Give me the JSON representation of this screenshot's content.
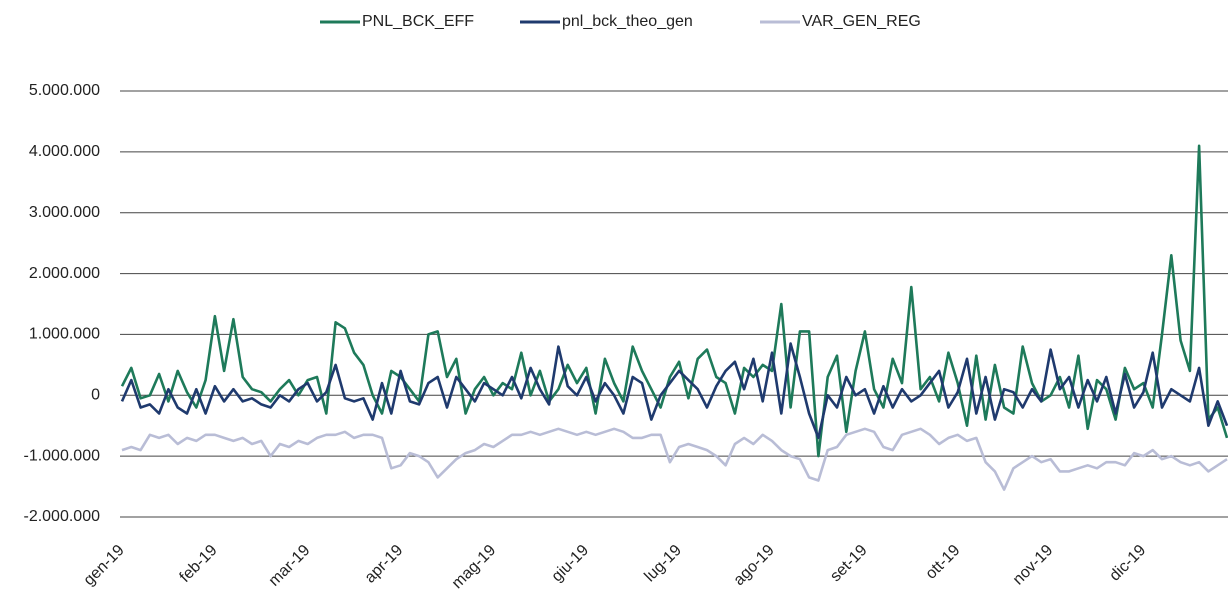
{
  "chart_data": {
    "type": "line",
    "categories": [
      "gen-19",
      null,
      null,
      null,
      null,
      null,
      null,
      null,
      null,
      null,
      "feb-19",
      null,
      null,
      null,
      null,
      null,
      null,
      null,
      null,
      null,
      "mar-19",
      null,
      null,
      null,
      null,
      null,
      null,
      null,
      null,
      null,
      "apr-19",
      null,
      null,
      null,
      null,
      null,
      null,
      null,
      null,
      null,
      "mag-19",
      null,
      null,
      null,
      null,
      null,
      null,
      null,
      null,
      null,
      "giu-19",
      null,
      null,
      null,
      null,
      null,
      null,
      null,
      null,
      null,
      "lug-19",
      null,
      null,
      null,
      null,
      null,
      null,
      null,
      null,
      null,
      "ago-19",
      null,
      null,
      null,
      null,
      null,
      null,
      null,
      null,
      null,
      "set-19",
      null,
      null,
      null,
      null,
      null,
      null,
      null,
      null,
      null,
      "ott-19",
      null,
      null,
      null,
      null,
      null,
      null,
      null,
      null,
      null,
      "nov-19",
      null,
      null,
      null,
      null,
      null,
      null,
      null,
      null,
      null,
      "dic-19",
      null,
      null,
      null,
      null,
      null,
      null,
      null,
      null,
      null
    ],
    "series": [
      {
        "name": "PNL_BCK_EFF",
        "color": "#1e7a5a",
        "values": [
          150000,
          450000,
          -50000,
          0,
          350000,
          -100000,
          400000,
          50000,
          -200000,
          250000,
          1300000,
          400000,
          1250000,
          300000,
          100000,
          50000,
          -100000,
          100000,
          250000,
          0,
          250000,
          300000,
          -300000,
          1200000,
          1100000,
          700000,
          500000,
          0,
          -300000,
          400000,
          300000,
          100000,
          -100000,
          1000000,
          1050000,
          300000,
          600000,
          -300000,
          100000,
          300000,
          0,
          200000,
          100000,
          700000,
          0,
          400000,
          -100000,
          100000,
          500000,
          200000,
          450000,
          -300000,
          600000,
          200000,
          -100000,
          800000,
          400000,
          100000,
          -200000,
          300000,
          550000,
          -50000,
          600000,
          750000,
          300000,
          200000,
          -300000,
          450000,
          300000,
          500000,
          400000,
          1500000,
          -200000,
          1050000,
          1050000,
          -1000000,
          300000,
          650000,
          -600000,
          400000,
          1050000,
          100000,
          -200000,
          600000,
          200000,
          1780000,
          100000,
          300000,
          -100000,
          700000,
          200000,
          -500000,
          650000,
          -400000,
          500000,
          -200000,
          -300000,
          800000,
          200000,
          -100000,
          0,
          300000,
          -200000,
          650000,
          -550000,
          250000,
          100000,
          -400000,
          450000,
          100000,
          200000,
          -200000,
          1000000,
          2300000,
          900000,
          400000,
          4100000,
          -400000,
          -200000,
          -700000
        ]
      },
      {
        "name": "pnl_bck_theo_gen",
        "color": "#1f3a6e",
        "values": [
          -100000,
          250000,
          -200000,
          -150000,
          -300000,
          100000,
          -200000,
          -300000,
          100000,
          -300000,
          150000,
          -100000,
          100000,
          -100000,
          -50000,
          -150000,
          -200000,
          0,
          -100000,
          100000,
          200000,
          -100000,
          50000,
          500000,
          -50000,
          -100000,
          -50000,
          -400000,
          200000,
          -300000,
          400000,
          -100000,
          -150000,
          200000,
          300000,
          -200000,
          300000,
          100000,
          -100000,
          200000,
          100000,
          0,
          300000,
          -50000,
          450000,
          100000,
          -150000,
          800000,
          150000,
          0,
          300000,
          -100000,
          200000,
          0,
          -300000,
          300000,
          200000,
          -400000,
          0,
          200000,
          400000,
          250000,
          100000,
          -200000,
          150000,
          400000,
          550000,
          100000,
          600000,
          -100000,
          700000,
          -300000,
          850000,
          300000,
          -300000,
          -700000,
          0,
          -200000,
          300000,
          0,
          100000,
          -300000,
          150000,
          -200000,
          100000,
          -100000,
          0,
          200000,
          400000,
          -200000,
          50000,
          600000,
          -300000,
          300000,
          -400000,
          100000,
          50000,
          -200000,
          100000,
          -100000,
          750000,
          100000,
          300000,
          -200000,
          250000,
          -100000,
          300000,
          -300000,
          350000,
          -200000,
          50000,
          700000,
          -200000,
          100000,
          0,
          -100000,
          450000,
          -500000,
          -100000,
          -500000
        ]
      },
      {
        "name": "VAR_GEN_REG",
        "color": "#b9bdd6",
        "values": [
          -900000,
          -850000,
          -900000,
          -650000,
          -700000,
          -650000,
          -800000,
          -700000,
          -750000,
          -650000,
          -650000,
          -700000,
          -750000,
          -700000,
          -800000,
          -750000,
          -1000000,
          -800000,
          -850000,
          -750000,
          -800000,
          -700000,
          -650000,
          -650000,
          -600000,
          -700000,
          -650000,
          -650000,
          -700000,
          -1200000,
          -1150000,
          -950000,
          -1000000,
          -1100000,
          -1350000,
          -1200000,
          -1050000,
          -950000,
          -900000,
          -800000,
          -850000,
          -750000,
          -650000,
          -650000,
          -600000,
          -650000,
          -600000,
          -550000,
          -600000,
          -650000,
          -600000,
          -650000,
          -600000,
          -550000,
          -600000,
          -700000,
          -700000,
          -650000,
          -650000,
          -1100000,
          -850000,
          -800000,
          -850000,
          -900000,
          -1000000,
          -1150000,
          -800000,
          -700000,
          -800000,
          -650000,
          -750000,
          -900000,
          -1000000,
          -1050000,
          -1350000,
          -1400000,
          -900000,
          -850000,
          -650000,
          -600000,
          -550000,
          -600000,
          -850000,
          -900000,
          -650000,
          -600000,
          -550000,
          -650000,
          -800000,
          -700000,
          -650000,
          -750000,
          -700000,
          -1100000,
          -1250000,
          -1550000,
          -1200000,
          -1100000,
          -1000000,
          -1100000,
          -1050000,
          -1250000,
          -1250000,
          -1200000,
          -1150000,
          -1200000,
          -1100000,
          -1100000,
          -1150000,
          -950000,
          -1000000,
          -900000,
          -1050000,
          -1000000,
          -1100000,
          -1150000,
          -1100000,
          -1250000,
          -1150000,
          -1050000
        ]
      }
    ],
    "ylim": [
      -2000000,
      5000000
    ],
    "yticks": [
      {
        "value": -2000000,
        "label": "-2.000.000"
      },
      {
        "value": -1000000,
        "label": "-1.000.000"
      },
      0,
      {
        "value": 1000000,
        "label": "1.000.000"
      },
      {
        "value": 2000000,
        "label": "2.000.000"
      },
      {
        "value": 3000000,
        "label": "3.000.000"
      },
      {
        "value": 4000000,
        "label": "4.000.000"
      },
      {
        "value": 5000000,
        "label": "5.000.000"
      }
    ],
    "grid": true,
    "legend": "top"
  }
}
